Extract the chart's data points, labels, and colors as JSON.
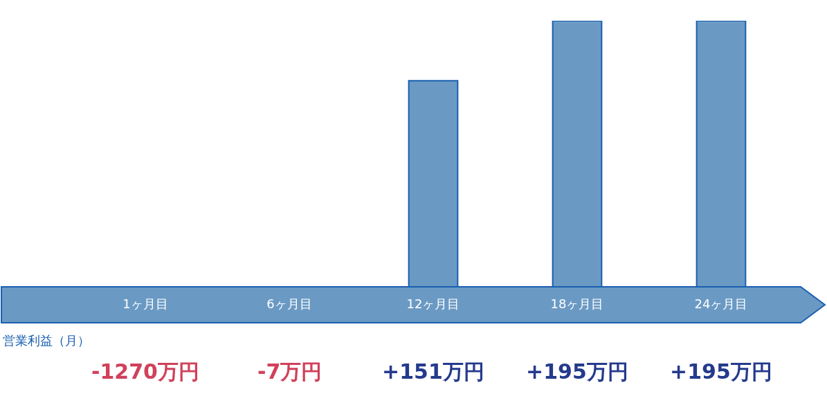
{
  "chart_data": {
    "type": "bar",
    "categories": [
      "1ヶ月目",
      "6ヶ月目",
      "12ヶ月目",
      "18ヶ月目",
      "24ヶ月目"
    ],
    "values": [
      null,
      null,
      151,
      195,
      195
    ],
    "color": "#6a9ac4",
    "value_labels": [
      "-1270万円",
      "-7万円",
      "+151万円",
      "+195万円",
      "+195万円"
    ],
    "annotations": [
      "営業利益（月）"
    ],
    "ylim": [
      0,
      195
    ],
    "tick_labels": "x",
    "grid": false
  }
}
